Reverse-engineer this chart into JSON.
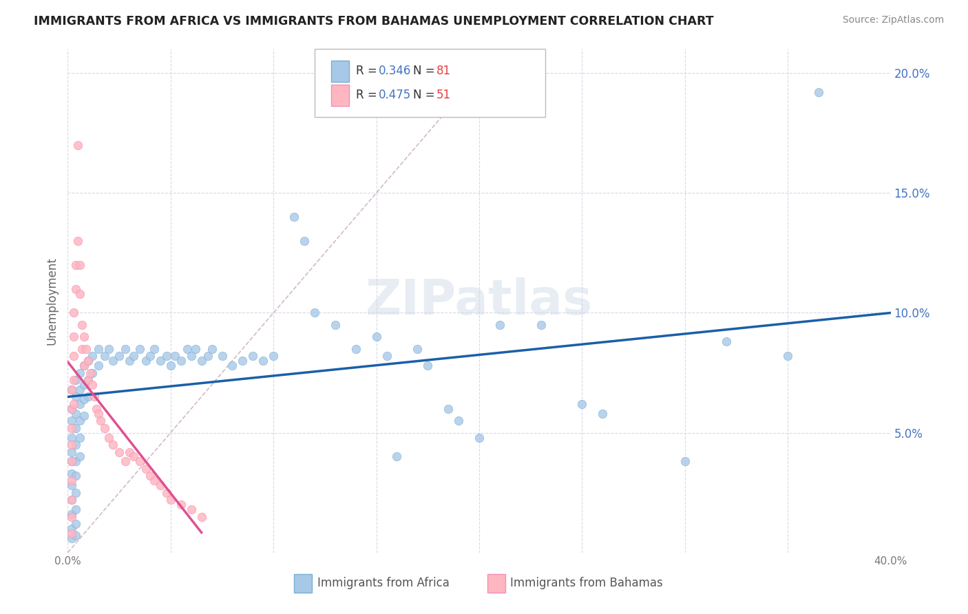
{
  "title": "IMMIGRANTS FROM AFRICA VS IMMIGRANTS FROM BAHAMAS UNEMPLOYMENT CORRELATION CHART",
  "source": "Source: ZipAtlas.com",
  "ylabel": "Unemployment",
  "xlim": [
    0.0,
    0.4
  ],
  "ylim": [
    0.0,
    0.21
  ],
  "xticks": [
    0.0,
    0.05,
    0.1,
    0.15,
    0.2,
    0.25,
    0.3,
    0.35,
    0.4
  ],
  "yticks": [
    0.0,
    0.05,
    0.1,
    0.15,
    0.2
  ],
  "africa_color": "#a8c8e8",
  "africa_edge_color": "#7aaed0",
  "bahamas_color": "#ffb6c1",
  "bahamas_edge_color": "#f48fb1",
  "africa_line_color": "#1a5fa8",
  "bahamas_line_color": "#e05090",
  "diagonal_color": "#c8a8b8",
  "background_color": "#ffffff",
  "grid_color": "#d8d8e8",
  "tick_label_color": "#4472c4",
  "title_color": "#222222",
  "source_color": "#888888",
  "legend_r_color": "#4472c4",
  "legend_n_color": "#e84040",
  "africa_scatter": [
    [
      0.002,
      0.068
    ],
    [
      0.002,
      0.06
    ],
    [
      0.002,
      0.055
    ],
    [
      0.002,
      0.048
    ],
    [
      0.002,
      0.042
    ],
    [
      0.002,
      0.038
    ],
    [
      0.002,
      0.033
    ],
    [
      0.002,
      0.028
    ],
    [
      0.002,
      0.022
    ],
    [
      0.002,
      0.016
    ],
    [
      0.002,
      0.01
    ],
    [
      0.002,
      0.006
    ],
    [
      0.004,
      0.072
    ],
    [
      0.004,
      0.065
    ],
    [
      0.004,
      0.058
    ],
    [
      0.004,
      0.052
    ],
    [
      0.004,
      0.045
    ],
    [
      0.004,
      0.038
    ],
    [
      0.004,
      0.032
    ],
    [
      0.004,
      0.025
    ],
    [
      0.004,
      0.018
    ],
    [
      0.004,
      0.012
    ],
    [
      0.004,
      0.007
    ],
    [
      0.006,
      0.075
    ],
    [
      0.006,
      0.068
    ],
    [
      0.006,
      0.062
    ],
    [
      0.006,
      0.055
    ],
    [
      0.006,
      0.048
    ],
    [
      0.006,
      0.04
    ],
    [
      0.008,
      0.078
    ],
    [
      0.008,
      0.07
    ],
    [
      0.008,
      0.064
    ],
    [
      0.008,
      0.057
    ],
    [
      0.01,
      0.08
    ],
    [
      0.01,
      0.072
    ],
    [
      0.01,
      0.065
    ],
    [
      0.012,
      0.082
    ],
    [
      0.012,
      0.075
    ],
    [
      0.015,
      0.085
    ],
    [
      0.015,
      0.078
    ],
    [
      0.018,
      0.082
    ],
    [
      0.02,
      0.085
    ],
    [
      0.022,
      0.08
    ],
    [
      0.025,
      0.082
    ],
    [
      0.028,
      0.085
    ],
    [
      0.03,
      0.08
    ],
    [
      0.032,
      0.082
    ],
    [
      0.035,
      0.085
    ],
    [
      0.038,
      0.08
    ],
    [
      0.04,
      0.082
    ],
    [
      0.042,
      0.085
    ],
    [
      0.045,
      0.08
    ],
    [
      0.048,
      0.082
    ],
    [
      0.05,
      0.078
    ],
    [
      0.052,
      0.082
    ],
    [
      0.055,
      0.08
    ],
    [
      0.058,
      0.085
    ],
    [
      0.06,
      0.082
    ],
    [
      0.062,
      0.085
    ],
    [
      0.065,
      0.08
    ],
    [
      0.068,
      0.082
    ],
    [
      0.07,
      0.085
    ],
    [
      0.075,
      0.082
    ],
    [
      0.08,
      0.078
    ],
    [
      0.085,
      0.08
    ],
    [
      0.09,
      0.082
    ],
    [
      0.095,
      0.08
    ],
    [
      0.1,
      0.082
    ],
    [
      0.11,
      0.14
    ],
    [
      0.115,
      0.13
    ],
    [
      0.12,
      0.1
    ],
    [
      0.13,
      0.095
    ],
    [
      0.14,
      0.085
    ],
    [
      0.15,
      0.09
    ],
    [
      0.155,
      0.082
    ],
    [
      0.16,
      0.04
    ],
    [
      0.17,
      0.085
    ],
    [
      0.175,
      0.078
    ],
    [
      0.185,
      0.06
    ],
    [
      0.19,
      0.055
    ],
    [
      0.2,
      0.048
    ],
    [
      0.21,
      0.095
    ],
    [
      0.23,
      0.095
    ],
    [
      0.25,
      0.062
    ],
    [
      0.26,
      0.058
    ],
    [
      0.3,
      0.038
    ],
    [
      0.32,
      0.088
    ],
    [
      0.35,
      0.082
    ],
    [
      0.365,
      0.192
    ]
  ],
  "bahamas_scatter": [
    [
      0.002,
      0.068
    ],
    [
      0.002,
      0.06
    ],
    [
      0.002,
      0.052
    ],
    [
      0.002,
      0.045
    ],
    [
      0.002,
      0.038
    ],
    [
      0.002,
      0.03
    ],
    [
      0.002,
      0.022
    ],
    [
      0.002,
      0.015
    ],
    [
      0.002,
      0.008
    ],
    [
      0.003,
      0.1
    ],
    [
      0.003,
      0.09
    ],
    [
      0.003,
      0.082
    ],
    [
      0.003,
      0.072
    ],
    [
      0.003,
      0.062
    ],
    [
      0.004,
      0.12
    ],
    [
      0.004,
      0.11
    ],
    [
      0.005,
      0.17
    ],
    [
      0.005,
      0.13
    ],
    [
      0.006,
      0.12
    ],
    [
      0.006,
      0.108
    ],
    [
      0.007,
      0.095
    ],
    [
      0.007,
      0.085
    ],
    [
      0.008,
      0.09
    ],
    [
      0.008,
      0.078
    ],
    [
      0.009,
      0.085
    ],
    [
      0.01,
      0.08
    ],
    [
      0.01,
      0.072
    ],
    [
      0.011,
      0.075
    ],
    [
      0.012,
      0.07
    ],
    [
      0.013,
      0.065
    ],
    [
      0.014,
      0.06
    ],
    [
      0.015,
      0.058
    ],
    [
      0.016,
      0.055
    ],
    [
      0.018,
      0.052
    ],
    [
      0.02,
      0.048
    ],
    [
      0.022,
      0.045
    ],
    [
      0.025,
      0.042
    ],
    [
      0.028,
      0.038
    ],
    [
      0.03,
      0.042
    ],
    [
      0.032,
      0.04
    ],
    [
      0.035,
      0.038
    ],
    [
      0.038,
      0.035
    ],
    [
      0.04,
      0.032
    ],
    [
      0.042,
      0.03
    ],
    [
      0.045,
      0.028
    ],
    [
      0.048,
      0.025
    ],
    [
      0.05,
      0.022
    ],
    [
      0.055,
      0.02
    ],
    [
      0.06,
      0.018
    ],
    [
      0.065,
      0.015
    ]
  ],
  "africa_trend": [
    0.0,
    0.4,
    0.065,
    0.1
  ],
  "bahamas_trend_xmax": 0.065
}
